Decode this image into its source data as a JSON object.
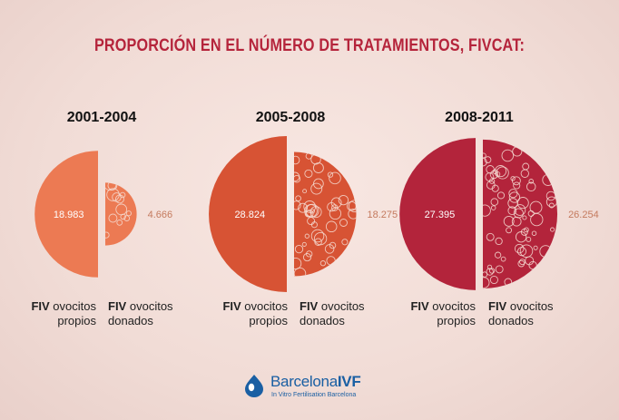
{
  "chart_data": {
    "type": "pie",
    "title": "PROPORCIÓN EN EL NÚMERO DE TRATAMIENTOS, FIVCAT:",
    "categories": [
      "FIV ovocitos propios",
      "FIV ovocitos donados"
    ],
    "groups": [
      {
        "period": "2001-2004",
        "values": [
          18983,
          4666
        ],
        "value_labels": [
          "18.983",
          "4.666"
        ],
        "colors": [
          "#ec7a53",
          "#ec7a53"
        ]
      },
      {
        "period": "2005-2008",
        "values": [
          28824,
          18275
        ],
        "value_labels": [
          "28.824",
          "18.275"
        ],
        "colors": [
          "#d75334",
          "#d75334"
        ]
      },
      {
        "period": "2008-2011",
        "values": [
          27395,
          26254
        ],
        "value_labels": [
          "27.395",
          "26.254"
        ],
        "colors": [
          "#b3243b",
          "#b3243b"
        ]
      }
    ]
  },
  "labels": {
    "fiv": "FIV",
    "propios_line1": "ovocitos",
    "propios_line2": "propios",
    "donados_line1": "ovocitos",
    "donados_line2": "donados"
  },
  "logo": {
    "name_regular": "Barcelona",
    "name_bold": "IVF",
    "tagline": "In Vitro Fertilisation Barcelona"
  },
  "colors": {
    "title": "#b5243b",
    "value_label_outside": "#c47a5e",
    "bubble_stroke": "#f6ddd4",
    "logo_blue": "#1a5fa3"
  }
}
